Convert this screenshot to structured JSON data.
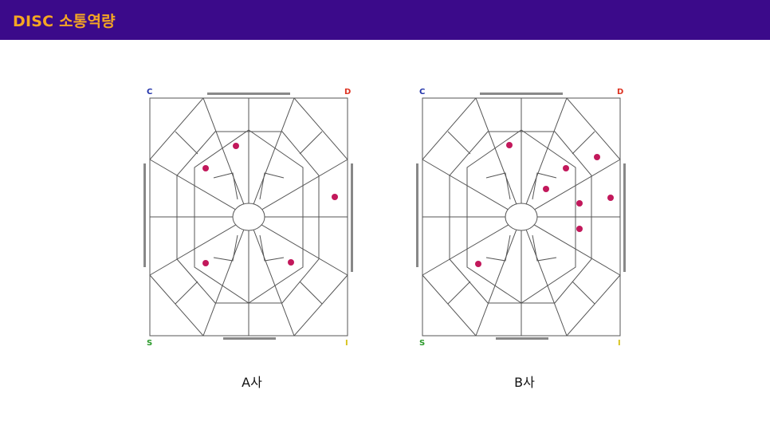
{
  "header": {
    "title": "DISC 소통역량"
  },
  "diagram": {
    "corner_labels": {
      "c": "C",
      "d": "D",
      "s": "S",
      "i": "I"
    },
    "colors": {
      "c": "#2233aa",
      "d": "#dd3322",
      "s": "#2b9a2b",
      "i": "#d6c21a",
      "dot": "#c2185b",
      "line": "#555555",
      "header_bg": "#3b0a8a",
      "title": "#f5a623"
    }
  },
  "panels": [
    {
      "caption": "A사",
      "dots": 5
    },
    {
      "caption": "B사",
      "dots": 8
    }
  ]
}
